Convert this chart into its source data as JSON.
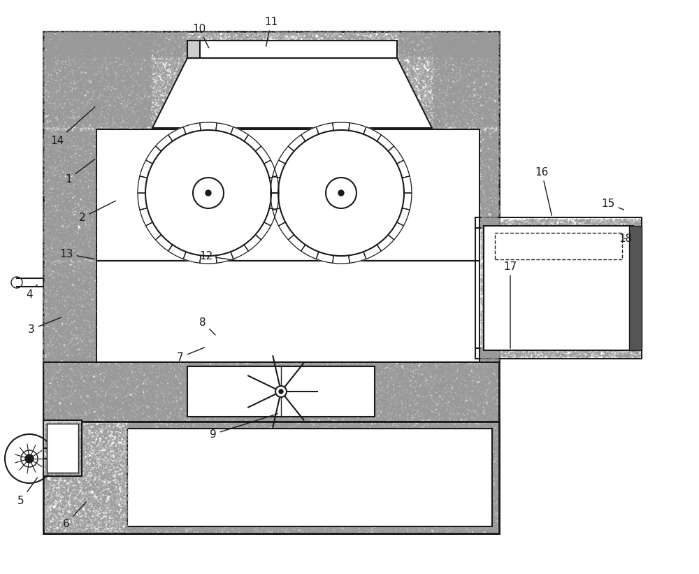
{
  "bg_color": "#ffffff",
  "line_color": "#1a1a1a",
  "stipple_color": "#888888",
  "figure_size": [
    10.0,
    8.21
  ],
  "dpi": 100
}
